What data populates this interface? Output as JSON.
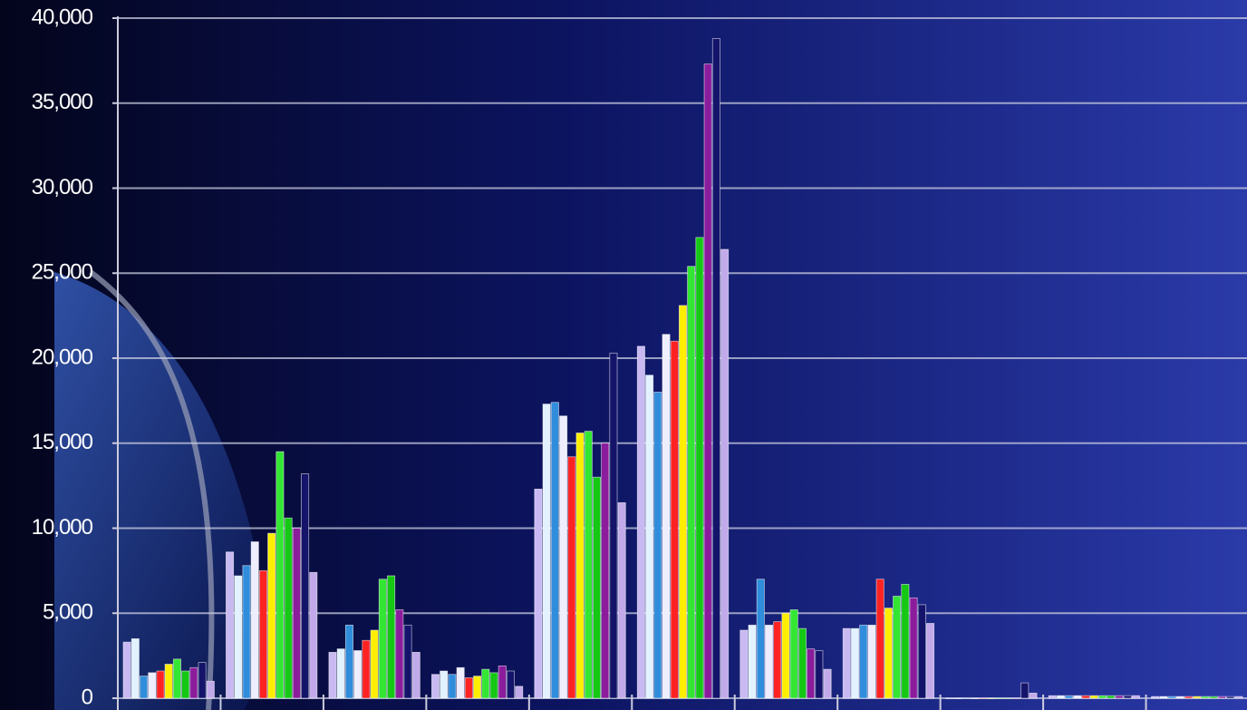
{
  "chart_data": {
    "type": "bar",
    "categories": [
      null,
      null,
      null,
      null,
      null,
      null,
      null,
      null,
      null,
      null,
      null
    ],
    "series": [
      {
        "color": "#c9b9f2",
        "values": [
          3300,
          8600,
          2700,
          1400,
          12300,
          20700,
          4000,
          4100,
          0,
          150,
          100
        ]
      },
      {
        "color": "#e2f2ff",
        "values": [
          3500,
          7200,
          2900,
          1600,
          17300,
          19000,
          4300,
          4100,
          0,
          150,
          100
        ]
      },
      {
        "color": "#2f8ddb",
        "values": [
          1300,
          7800,
          4300,
          1400,
          17400,
          18000,
          7000,
          4300,
          0,
          150,
          100
        ]
      },
      {
        "color": "#eeeeff",
        "values": [
          1500,
          9200,
          2800,
          1800,
          16600,
          21400,
          4300,
          4300,
          0,
          150,
          100
        ]
      },
      {
        "color": "#ff2222",
        "values": [
          1600,
          7500,
          3400,
          1200,
          14200,
          21000,
          4500,
          7000,
          0,
          150,
          100
        ]
      },
      {
        "color": "#ffee00",
        "values": [
          2000,
          9700,
          4000,
          1300,
          15600,
          23100,
          5000,
          5300,
          0,
          150,
          100
        ]
      },
      {
        "color": "#33e633",
        "values": [
          2300,
          14500,
          7000,
          1700,
          15700,
          25400,
          5200,
          6000,
          0,
          150,
          100
        ]
      },
      {
        "color": "#14c814",
        "values": [
          1600,
          10600,
          7200,
          1500,
          13000,
          27100,
          4100,
          6700,
          0,
          150,
          100
        ]
      },
      {
        "color": "#8b1c9c",
        "values": [
          1800,
          10000,
          5200,
          1900,
          15000,
          37300,
          2900,
          5900,
          0,
          150,
          100
        ]
      },
      {
        "color": "#14146a",
        "values": [
          2100,
          13200,
          4300,
          1600,
          20300,
          38800,
          2800,
          5500,
          900,
          150,
          100
        ]
      },
      {
        "color": "#c2aaea",
        "values": [
          1000,
          7400,
          2700,
          700,
          11500,
          26400,
          1700,
          4400,
          300,
          150,
          100
        ]
      }
    ],
    "ylim": [
      0,
      40000
    ],
    "yticks": [
      0,
      {
        "value": 5000,
        "label": "5,000"
      },
      {
        "value": 10000,
        "label": "10,000"
      },
      {
        "value": 15000,
        "label": "15,000"
      },
      {
        "value": 20000,
        "label": "20,000"
      },
      {
        "value": 25000,
        "label": "25,000"
      },
      {
        "value": 30000,
        "label": "30,000"
      },
      {
        "value": 35000,
        "label": "35,000"
      },
      {
        "value": 40000,
        "label": "40,000"
      }
    ],
    "grid": true
  }
}
